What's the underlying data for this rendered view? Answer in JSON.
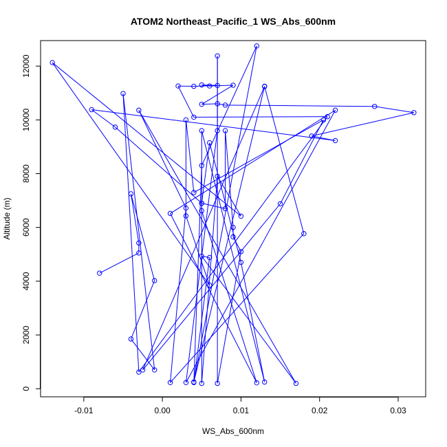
{
  "chart_data": {
    "type": "scatter",
    "title": "ATOM2 Northeast_Pacific_1 WS_Abs_600nm",
    "xlabel": "WS_Abs_600nm",
    "ylabel": "Altitude (m)",
    "xlim": [
      -0.0155,
      0.0335
    ],
    "ylim": [
      -300,
      12950
    ],
    "x_ticks": [
      -0.01,
      0.0,
      0.01,
      0.02,
      0.03
    ],
    "x_tick_labels": [
      "-0.01",
      "0.00",
      "0.01",
      "0.02",
      "0.03"
    ],
    "y_ticks": [
      0,
      2000,
      4000,
      6000,
      8000,
      10000,
      12000
    ],
    "y_tick_labels": [
      "0",
      "2000",
      "4000",
      "6000",
      "8000",
      "10000",
      "12000"
    ],
    "grid": false,
    "series": [
      {
        "color": "#0000ff",
        "marker": "open-circle",
        "connected": true,
        "points": [
          {
            "x": -0.008,
            "y": 4300
          },
          {
            "x": -0.003,
            "y": 5050
          },
          {
            "x": -0.003,
            "y": 5420
          },
          {
            "x": -0.004,
            "y": 7250
          },
          {
            "x": -0.001,
            "y": 4020
          },
          {
            "x": -0.004,
            "y": 1850
          },
          {
            "x": -0.001,
            "y": 700
          },
          {
            "x": -0.005,
            "y": 10980
          },
          {
            "x": -0.003,
            "y": 620
          },
          {
            "x": 0.021,
            "y": 10120
          },
          {
            "x": 0.004,
            "y": 10100
          },
          {
            "x": 0.002,
            "y": 11260
          },
          {
            "x": 0.004,
            "y": 11250
          },
          {
            "x": 0.007,
            "y": 11280
          },
          {
            "x": 0.005,
            "y": 11300
          },
          {
            "x": 0.006,
            "y": 11260
          },
          {
            "x": 0.009,
            "y": 11290
          },
          {
            "x": 0.005,
            "y": 10580
          },
          {
            "x": 0.007,
            "y": 10600
          },
          {
            "x": 0.008,
            "y": 10550
          },
          {
            "x": 0.027,
            "y": 10500
          },
          {
            "x": 0.032,
            "y": 10270
          },
          {
            "x": 0.019,
            "y": 9400
          },
          {
            "x": 0.022,
            "y": 9230
          },
          {
            "x": -0.009,
            "y": 10380
          },
          {
            "x": -0.006,
            "y": 9730
          },
          {
            "x": 0.005,
            "y": 6900
          },
          {
            "x": 0.005,
            "y": 6620
          },
          {
            "x": 0.012,
            "y": 220
          },
          {
            "x": 0.001,
            "y": 6520
          },
          {
            "x": 0.022,
            "y": 10360
          },
          {
            "x": 0.003,
            "y": 230
          },
          {
            "x": 0.007,
            "y": 9600
          },
          {
            "x": 0.007,
            "y": 12380
          },
          {
            "x": 0.007,
            "y": 200
          },
          {
            "x": 0.01,
            "y": 5100
          },
          {
            "x": 0.009,
            "y": 5650
          },
          {
            "x": 0.009,
            "y": 6000
          },
          {
            "x": 0.008,
            "y": 9600
          },
          {
            "x": 0.008,
            "y": 6700
          },
          {
            "x": 0.005,
            "y": 6900
          },
          {
            "x": 0.006,
            "y": 9150
          },
          {
            "x": 0.01,
            "y": 4700
          },
          {
            "x": 0.013,
            "y": 250
          },
          {
            "x": 0.005,
            "y": 9600
          },
          {
            "x": 0.005,
            "y": 200
          },
          {
            "x": 0.007,
            "y": 7900
          },
          {
            "x": 0.01,
            "y": 6420
          },
          {
            "x": -0.014,
            "y": 12130
          },
          {
            "x": 0.006,
            "y": 3850
          },
          {
            "x": 0.003,
            "y": 6430
          },
          {
            "x": 0.003,
            "y": 10000
          },
          {
            "x": 0.004,
            "y": 7300
          },
          {
            "x": 0.0205,
            "y": 10000
          },
          {
            "x": 0.015,
            "y": 6880
          },
          {
            "x": -0.0025,
            "y": 700
          },
          {
            "x": 0.013,
            "y": 11250
          },
          {
            "x": 0.004,
            "y": 250
          },
          {
            "x": 0.012,
            "y": 12750
          },
          {
            "x": 0.005,
            "y": 8300
          },
          {
            "x": 0.004,
            "y": 230
          },
          {
            "x": 0.006,
            "y": 4880
          },
          {
            "x": 0.005,
            "y": 4930
          },
          {
            "x": 0.017,
            "y": 200
          },
          {
            "x": -0.003,
            "y": 10360
          },
          {
            "x": 0.003,
            "y": 6720
          },
          {
            "x": 0.001,
            "y": 230
          },
          {
            "x": 0.018,
            "y": 5770
          },
          {
            "x": 0.013,
            "y": 11240
          }
        ]
      }
    ]
  }
}
